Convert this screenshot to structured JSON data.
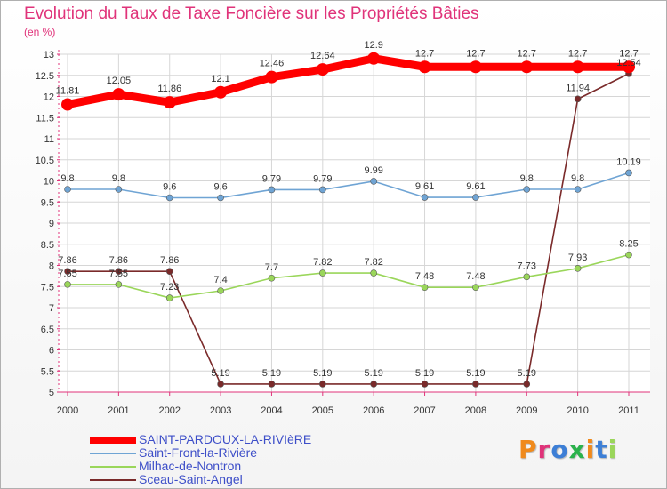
{
  "chart_data": {
    "type": "line",
    "title": "Evolution du Taux de Taxe Foncière sur les Propriétés Bâties",
    "ylabel": "(en %)",
    "xlabel": "",
    "categories": [
      "2000",
      "2001",
      "2002",
      "2003",
      "2004",
      "2005",
      "2006",
      "2007",
      "2008",
      "2009",
      "2010",
      "2011"
    ],
    "ylim": [
      5,
      13
    ],
    "yticks": [
      "5",
      "5.5",
      "6",
      "6.5",
      "7",
      "7.5",
      "8",
      "8.5",
      "9",
      "9.5",
      "10",
      "10.5",
      "11",
      "11.5",
      "12",
      "12.5",
      "13"
    ],
    "grid": true,
    "series": [
      {
        "name": "SAINT-PARDOUX-LA-RIVIèRE",
        "color": "#ff0000",
        "values": [
          11.81,
          12.05,
          11.86,
          12.1,
          12.46,
          12.64,
          12.9,
          12.7,
          12.7,
          12.7,
          12.7,
          12.7
        ],
        "labels": [
          "11.81",
          "12.05",
          "11.86",
          "12.1",
          "12.46",
          "12.64",
          "12.9",
          "12.7",
          "12.7",
          "12.7",
          "12.7",
          "12.7"
        ]
      },
      {
        "name": "Saint-Front-la-Rivière",
        "color": "#6fa4d4",
        "values": [
          9.8,
          9.8,
          9.6,
          9.6,
          9.79,
          9.79,
          9.99,
          9.61,
          9.61,
          9.8,
          9.8,
          10.19
        ],
        "labels": [
          "9.8",
          "9.8",
          "9.6",
          "9.6",
          "9.79",
          "9.79",
          "9.99",
          "9.61",
          "9.61",
          "9.8",
          "9.8",
          "10.19"
        ]
      },
      {
        "name": "Milhac-de-Nontron",
        "color": "#9ad65a",
        "values": [
          7.55,
          7.55,
          7.23,
          7.4,
          7.7,
          7.82,
          7.82,
          7.48,
          7.48,
          7.73,
          7.93,
          8.25
        ],
        "labels": [
          "7.55",
          "7.55",
          "7.23",
          "7.4",
          "7.7",
          "7.82",
          "7.82",
          "7.48",
          "7.48",
          "7.73",
          "7.93",
          "8.25"
        ]
      },
      {
        "name": "Sceau-Saint-Angel",
        "color": "#7a2a2a",
        "values": [
          7.86,
          7.86,
          7.86,
          5.19,
          5.19,
          5.19,
          5.19,
          5.19,
          5.19,
          5.19,
          11.94,
          12.54
        ],
        "labels": [
          "7.86",
          "7.86",
          "7.86",
          "5.19",
          "5.19",
          "5.19",
          "5.19",
          "5.19",
          "5.19",
          "5.19",
          "11.94",
          "12.54"
        ]
      }
    ],
    "legend": "bottom-left"
  },
  "logo": {
    "text": "Proxiti",
    "letter_colors": [
      "#f08a1c",
      "#e0337a",
      "#3d7fd6",
      "#2bb24c",
      "#f08a1c",
      "#3d7fd6",
      "#9ad65a"
    ]
  }
}
